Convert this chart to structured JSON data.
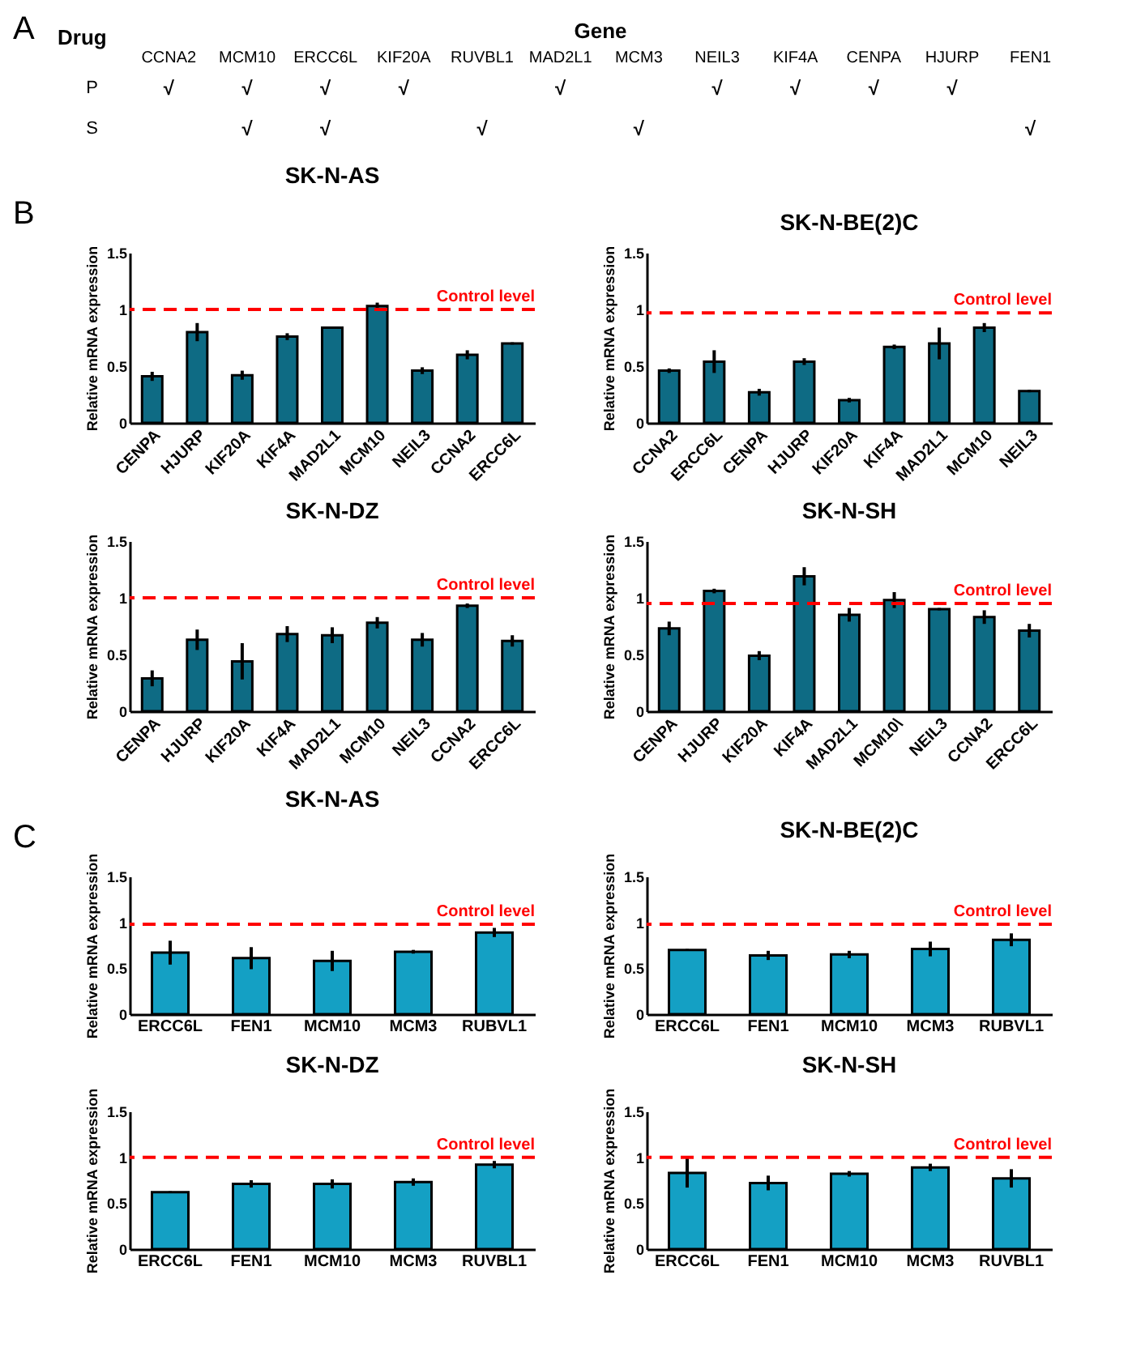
{
  "chart_data": [
    {
      "type": "heatmap",
      "xlabel": "Gene",
      "ylabel": "Drug",
      "annotations": [
        "A"
      ],
      "categories": [
        "CCNA2",
        "MCM10",
        "ERCC6L",
        "KIF20A",
        "RUVBL1",
        "MAD2L1",
        "MCM3",
        "NEIL3",
        "KIF4A",
        "CENPA",
        "HJURP",
        "FEN1"
      ],
      "y_categories": [
        "P",
        "S"
      ],
      "cells": [
        [
          null,
          null,
          null,
          null,
          null,
          null,
          null,
          null,
          null,
          null,
          null,
          null
        ],
        [
          null,
          null,
          null,
          null,
          null,
          null,
          null,
          null,
          null,
          null,
          null,
          null
        ]
      ],
      "cell_labels": [
        [
          "√",
          "√",
          "√",
          "√",
          null,
          "√",
          null,
          "√",
          "√",
          "√",
          "√",
          null
        ],
        [
          null,
          "√",
          "√",
          null,
          "√",
          null,
          "√",
          null,
          null,
          null,
          null,
          "√"
        ]
      ]
    },
    {
      "type": "bar",
      "title": "SK-N-AS",
      "ylabel": "Relative mRNA expression",
      "annotations": [
        "B"
      ],
      "categories": [
        "CENPA",
        "HJURP",
        "KIF20A",
        "KIF4A",
        "MAD2L1",
        "MCM10",
        "NEIL3",
        "CCNA2",
        "ERCC6L"
      ],
      "values": [
        0.41,
        0.8,
        0.42,
        0.76,
        0.84,
        1.03,
        0.46,
        0.6,
        0.7
      ],
      "errors": [
        0.04,
        0.08,
        0.04,
        0.03,
        0.01,
        0.03,
        0.03,
        0.04,
        0.01
      ],
      "color": "#0e6b84",
      "ylim": [
        0,
        1.5
      ],
      "yticks": [
        0,
        0.5,
        1,
        1.5
      ],
      "ref_lines": [
        {
          "axis": "y",
          "value": 1,
          "label": "Control level",
          "color": "#ff0000",
          "line_style": "dashed"
        }
      ]
    },
    {
      "type": "bar",
      "title": "SK-N-BE(2)C",
      "ylabel": "Relative mRNA expression",
      "categories": [
        "CCNA2",
        "ERCC6L",
        "CENPA",
        "HJURP",
        "KIF20A",
        "KIF4A",
        "MAD2L1",
        "MCM10",
        "NEIL3"
      ],
      "values": [
        0.46,
        0.54,
        0.27,
        0.54,
        0.2,
        0.67,
        0.7,
        0.84,
        0.28
      ],
      "errors": [
        0.02,
        0.1,
        0.03,
        0.03,
        0.02,
        0.02,
        0.14,
        0.04,
        0.01
      ],
      "color": "#0e6b84",
      "ylim": [
        0,
        1.5
      ],
      "yticks": [
        0,
        0.5,
        1,
        1.5
      ],
      "ref_lines": [
        {
          "axis": "y",
          "value": 0.97,
          "label": "Control level",
          "color": "#ff0000",
          "line_style": "dashed"
        }
      ]
    },
    {
      "type": "bar",
      "title": "SK-N-DZ",
      "ylabel": "Relative mRNA expression",
      "categories": [
        "CENPA",
        "HJURP",
        "KIF20A",
        "KIF4A",
        "MAD2L1",
        "MCM10",
        "NEIL3",
        "CCNA2",
        "ERCC6L"
      ],
      "values": [
        0.29,
        0.63,
        0.44,
        0.68,
        0.67,
        0.78,
        0.63,
        0.93,
        0.62
      ],
      "errors": [
        0.07,
        0.09,
        0.16,
        0.07,
        0.07,
        0.05,
        0.06,
        0.02,
        0.05
      ],
      "color": "#0e6b84",
      "ylim": [
        0,
        1.5
      ],
      "yticks": [
        0,
        0.5,
        1,
        1.5
      ],
      "ref_lines": [
        {
          "axis": "y",
          "value": 1,
          "label": "Control level",
          "color": "#ff0000",
          "line_style": "dashed"
        }
      ]
    },
    {
      "type": "bar",
      "title": "SK-N-SH",
      "ylabel": "Relative mRNA expression",
      "categories": [
        "CENPA",
        "HJURP",
        "KIF20A",
        "KIF4A",
        "MAD2L1",
        "MCM10\\",
        "NEIL3",
        "CCNA2",
        "ERCC6L"
      ],
      "values": [
        0.73,
        1.06,
        0.49,
        1.19,
        0.85,
        0.98,
        0.9,
        0.83,
        0.71
      ],
      "errors": [
        0.06,
        0.02,
        0.04,
        0.08,
        0.06,
        0.07,
        0.01,
        0.06,
        0.06
      ],
      "color": "#0e6b84",
      "ylim": [
        0,
        1.5
      ],
      "yticks": [
        0,
        0.5,
        1,
        1.5
      ],
      "ref_lines": [
        {
          "axis": "y",
          "value": 0.95,
          "label": "Control level",
          "color": "#ff0000",
          "line_style": "dashed"
        }
      ]
    },
    {
      "type": "bar",
      "title": "SK-N-AS",
      "ylabel": "Relative mRNA expression",
      "annotations": [
        "C"
      ],
      "categories": [
        "ERCC6L",
        "FEN1",
        "MCM10",
        "MCM3",
        "RUBVL1"
      ],
      "values": [
        0.67,
        0.61,
        0.58,
        0.68,
        0.89
      ],
      "errors": [
        0.13,
        0.12,
        0.11,
        0.02,
        0.05
      ],
      "color": "#14a0c4",
      "ylim": [
        0,
        1.5
      ],
      "yticks": [
        0,
        0.5,
        1,
        1.5
      ],
      "ref_lines": [
        {
          "axis": "y",
          "value": 0.98,
          "label": "Control level",
          "color": "#ff0000",
          "line_style": "dashed"
        }
      ]
    },
    {
      "type": "bar",
      "title": "SK-N-BE(2)C",
      "ylabel": "Relative mRNA expression",
      "categories": [
        "ERCC6L",
        "FEN1",
        "MCM10",
        "MCM3",
        "RUBVL1"
      ],
      "values": [
        0.7,
        0.64,
        0.65,
        0.71,
        0.81
      ],
      "errors": [
        0.01,
        0.05,
        0.04,
        0.08,
        0.07
      ],
      "color": "#14a0c4",
      "ylim": [
        0,
        1.5
      ],
      "yticks": [
        0,
        0.5,
        1,
        1.5
      ],
      "ref_lines": [
        {
          "axis": "y",
          "value": 0.98,
          "label": "Control level",
          "color": "#ff0000",
          "line_style": "dashed"
        }
      ]
    },
    {
      "type": "bar",
      "title": "SK-N-DZ",
      "ylabel": "Relative mRNA expression",
      "categories": [
        "ERCC6L",
        "FEN1",
        "MCM10",
        "MCM3",
        "RUVBL1"
      ],
      "values": [
        0.62,
        0.71,
        0.71,
        0.73,
        0.92
      ],
      "errors": [
        0.01,
        0.04,
        0.05,
        0.04,
        0.04
      ],
      "color": "#14a0c4",
      "ylim": [
        0,
        1.5
      ],
      "yticks": [
        0,
        0.5,
        1,
        1.5
      ],
      "ref_lines": [
        {
          "axis": "y",
          "value": 1,
          "label": "Control level",
          "color": "#ff0000",
          "line_style": "dashed"
        }
      ]
    },
    {
      "type": "bar",
      "title": "SK-N-SH",
      "ylabel": "Relative mRNA expression",
      "categories": [
        "ERCC6L",
        "FEN1",
        "MCM10",
        "MCM3",
        "RUVBL1"
      ],
      "values": [
        0.83,
        0.72,
        0.82,
        0.89,
        0.77
      ],
      "errors": [
        0.16,
        0.08,
        0.03,
        0.04,
        0.1
      ],
      "color": "#14a0c4",
      "ylim": [
        0,
        1.5
      ],
      "yticks": [
        0,
        0.5,
        1,
        1.5
      ],
      "ref_lines": [
        {
          "axis": "y",
          "value": 1,
          "label": "Control level",
          "color": "#ff0000",
          "line_style": "dashed"
        }
      ]
    }
  ]
}
